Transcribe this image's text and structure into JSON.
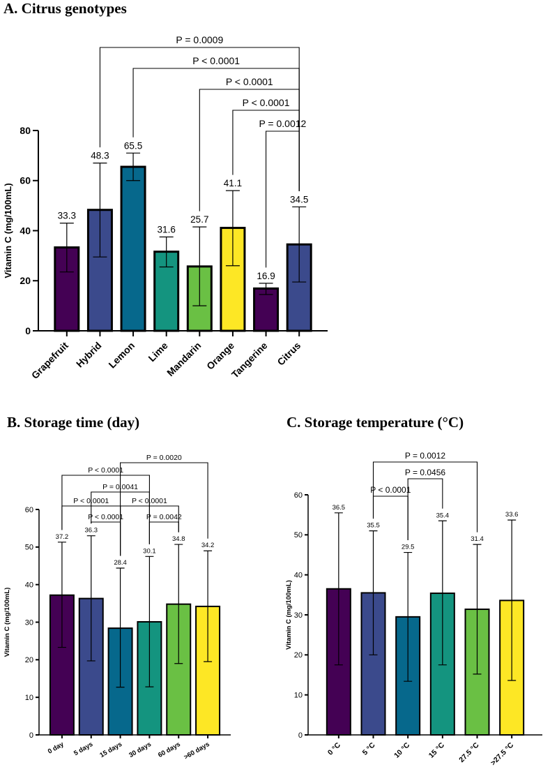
{
  "chart_data": [
    {
      "id": "A",
      "type": "bar",
      "title": "A. Citrus genotypes",
      "xlabel": "",
      "ylabel": "Vitamin C (mg/100mL)",
      "ylim": [
        0,
        80
      ],
      "yticks": [
        0,
        20,
        40,
        60,
        80
      ],
      "categories": [
        "Grapefruit",
        "Hybrid",
        "Lemon",
        "Lime",
        "Mandarin",
        "Orange",
        "Tangerine",
        "Citrus"
      ],
      "values": [
        33.3,
        48.3,
        65.5,
        31.6,
        25.7,
        41.1,
        16.9,
        34.5
      ],
      "value_labels": [
        "33.3",
        "48.3",
        "65.5",
        "31.6",
        "25.7",
        "41.1",
        "16.9",
        "34.5"
      ],
      "error_low": [
        23.5,
        29.5,
        60.0,
        25.5,
        10.0,
        26.0,
        14.5,
        19.5
      ],
      "error_high": [
        43.0,
        67.0,
        71.0,
        37.5,
        41.5,
        56.0,
        19.0,
        49.5
      ],
      "colors": [
        "#440154",
        "#3B4A8C",
        "#06688C",
        "#14947F",
        "#6AC044",
        "#FDE725",
        "#440154",
        "#3B4A8C"
      ],
      "comparisons": [
        {
          "a": 1,
          "b": 7,
          "label": "P = 0.0009"
        },
        {
          "a": 2,
          "b": 7,
          "label": "P < 0.0001"
        },
        {
          "a": 4,
          "b": 7,
          "label": "P < 0.0001"
        },
        {
          "a": 5,
          "b": 7,
          "label": "P < 0.0001"
        },
        {
          "a": 6,
          "b": 7,
          "label": "P = 0.0012"
        }
      ]
    },
    {
      "id": "B",
      "type": "bar",
      "title": "B. Storage time (day)",
      "xlabel": "",
      "ylabel": "Vitamin C (mg/100mL)",
      "ylim": [
        0,
        60
      ],
      "yticks": [
        0,
        10,
        20,
        30,
        40,
        50,
        60
      ],
      "categories": [
        "0 day",
        "5 days",
        "15 days",
        "30 days",
        "60 days",
        ">60 days"
      ],
      "values": [
        37.2,
        36.3,
        28.4,
        30.1,
        34.8,
        34.2
      ],
      "value_labels": [
        "37.2",
        "36.3",
        "28.4",
        "30.1",
        "34.8",
        "34.2"
      ],
      "error_low": [
        23.3,
        19.7,
        12.7,
        12.8,
        19.0,
        19.5
      ],
      "error_high": [
        51.3,
        53.0,
        44.4,
        47.5,
        50.7,
        49.0
      ],
      "colors": [
        "#440154",
        "#3B4A8C",
        "#06688C",
        "#14947F",
        "#6AC044",
        "#FDE725"
      ],
      "comparisons": [
        {
          "a": 2,
          "b": 5,
          "label": "P = 0.0020"
        },
        {
          "a": 0,
          "b": 3,
          "label": "P < 0.0001"
        },
        {
          "a": 1,
          "b": 3,
          "label": "P = 0.0041"
        },
        {
          "a": 0,
          "b": 2,
          "label": "P < 0.0001"
        },
        {
          "a": 2,
          "b": 4,
          "label": "P < 0.0001"
        },
        {
          "a": 1,
          "b": 2,
          "label": "P < 0.0001"
        },
        {
          "a": 3,
          "b": 4,
          "label": "P = 0.0042"
        }
      ]
    },
    {
      "id": "C",
      "type": "bar",
      "title": "C. Storage temperature (°C)",
      "xlabel": "",
      "ylabel": "Vitamin C (mg/100mL)",
      "ylim": [
        0,
        60
      ],
      "yticks": [
        0,
        10,
        20,
        30,
        40,
        50,
        60
      ],
      "categories": [
        "0 °C",
        "5 °C",
        "10 °C",
        "15 °C",
        "27.5 °C",
        ">27.5 °C"
      ],
      "values": [
        36.5,
        35.5,
        29.5,
        35.4,
        31.4,
        33.6
      ],
      "value_labels": [
        "36.5",
        "35.5",
        "29.5",
        "35.4",
        "31.4",
        "33.6"
      ],
      "error_low": [
        17.5,
        20.0,
        13.4,
        17.5,
        15.2,
        13.6
      ],
      "error_high": [
        55.5,
        51.0,
        45.6,
        53.5,
        47.6,
        53.7
      ],
      "colors": [
        "#440154",
        "#3B4A8C",
        "#06688C",
        "#14947F",
        "#6AC044",
        "#FDE725"
      ],
      "comparisons": [
        {
          "a": 1,
          "b": 4,
          "label": "P = 0.0012"
        },
        {
          "a": 2,
          "b": 3,
          "label": "P = 0.0456"
        },
        {
          "a": 1,
          "b": 2,
          "label": "P < 0.0001"
        }
      ]
    }
  ]
}
